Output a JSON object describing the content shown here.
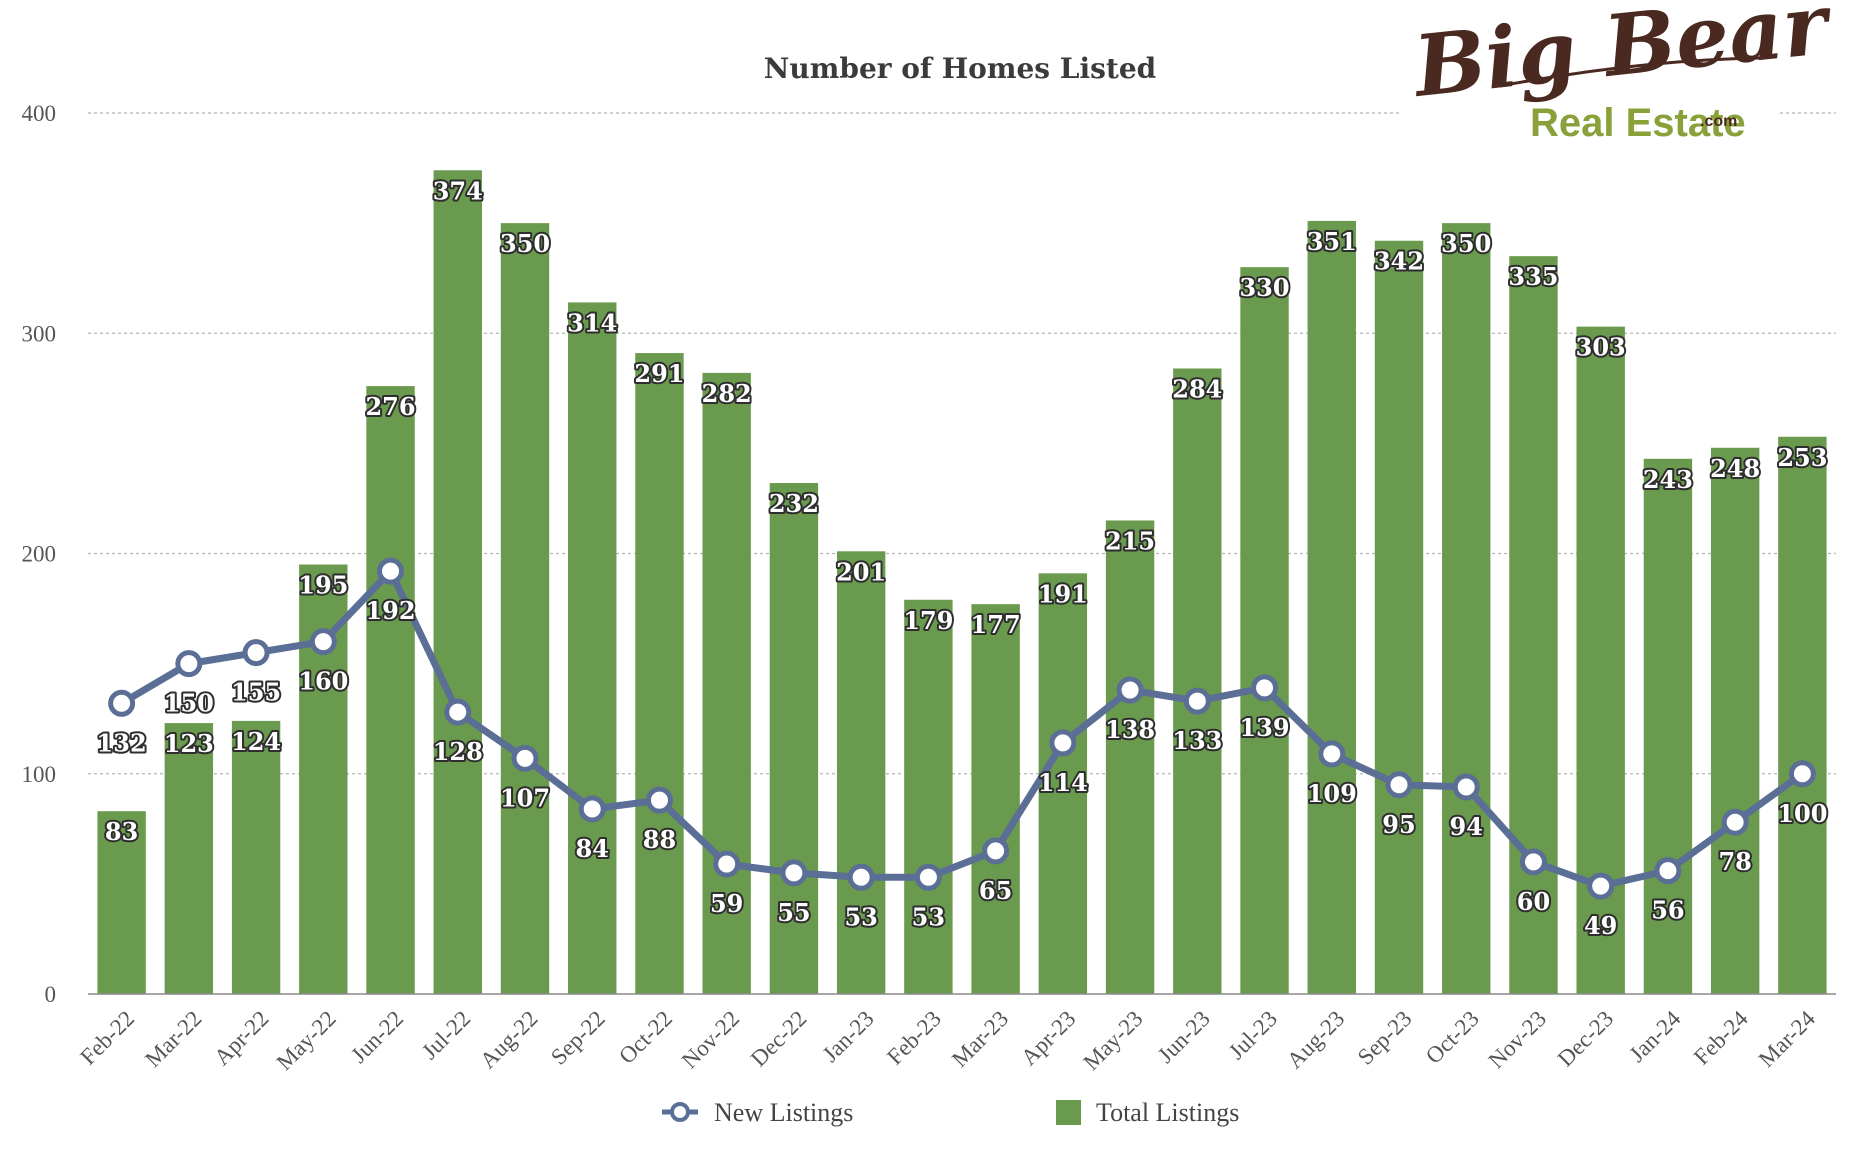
{
  "colors": {
    "bar": "#6a9a4e",
    "line": "#5a6e96",
    "grid": "#b5b5b5",
    "axis": "#8a8a8a",
    "logo_brown": "#4a2a20",
    "logo_green": "#8aa13a"
  },
  "logo": {
    "line1": "Big Bear",
    "line2": "Real Estate",
    "suffix": ".com"
  },
  "chart_data": {
    "type": "bar",
    "title": "Number of Homes Listed",
    "xlabel": "",
    "ylabel": "",
    "ylim": [
      0,
      400
    ],
    "yticks": [
      0,
      100,
      200,
      300,
      400
    ],
    "grid": true,
    "legend_position": "bottom",
    "categories": [
      "Feb-22",
      "Mar-22",
      "Apr-22",
      "May-22",
      "Jun-22",
      "Jul-22",
      "Aug-22",
      "Sep-22",
      "Oct-22",
      "Nov-22",
      "Dec-22",
      "Jan-23",
      "Feb-23",
      "Mar-23",
      "Apr-23",
      "May-23",
      "Jun-23",
      "Jul-23",
      "Aug-23",
      "Sep-23",
      "Oct-23",
      "Nov-23",
      "Dec-23",
      "Jan-24",
      "Feb-24",
      "Mar-24"
    ],
    "series": [
      {
        "name": "New Listings",
        "type": "line",
        "values": [
          132,
          150,
          155,
          160,
          192,
          128,
          107,
          84,
          88,
          59,
          55,
          53,
          53,
          65,
          114,
          138,
          133,
          139,
          109,
          95,
          94,
          60,
          49,
          56,
          78,
          100
        ]
      },
      {
        "name": "Total Listings",
        "type": "bar",
        "values": [
          83,
          123,
          124,
          195,
          276,
          374,
          350,
          314,
          291,
          282,
          232,
          201,
          179,
          177,
          191,
          215,
          284,
          330,
          351,
          342,
          350,
          335,
          303,
          243,
          248,
          253
        ]
      }
    ]
  }
}
